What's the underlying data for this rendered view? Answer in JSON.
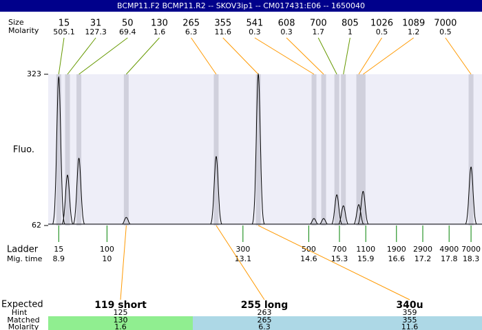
{
  "chart_data": {
    "type": "electropherogram",
    "title": "BCMP11.F2  BCMP11.R2 -- SKOV3ip1 -- CM017431:E06 -- 1650040",
    "size_label": "Size",
    "molarity_label": "Molarity",
    "y_label": "Fluo.",
    "ylim": [
      62,
      323
    ],
    "yticks": [
      62,
      323
    ],
    "xlim": [
      8.66,
      18.55
    ],
    "plot_color": "#eeeef8",
    "band_color": "#d0d0dc",
    "trace_color": "#000000",
    "peaks": {
      "size": [
        15,
        31,
        50,
        130,
        265,
        355,
        541,
        608,
        700,
        805,
        1026,
        1089,
        7000
      ],
      "molarity": [
        505.1,
        127.3,
        69.4,
        1.6,
        6.3,
        11.6,
        0.3,
        0.3,
        1.7,
        1,
        0.5,
        1.2,
        0.5
      ],
      "time": [
        8.9,
        9.1,
        9.36,
        10.44,
        12.49,
        13.45,
        14.72,
        14.94,
        15.24,
        15.39,
        15.74,
        15.84,
        18.3
      ],
      "fluo": [
        318,
        149,
        178,
        76,
        181,
        323,
        74,
        74,
        115,
        96,
        98,
        121,
        163
      ],
      "leader_color": [
        "#669900",
        "#669900",
        "#669900",
        "#669900",
        "#ff9900",
        "#ff9900",
        "#ff9900",
        "#ff9900",
        "#669900",
        "#669900",
        "#ff9900",
        "#ff9900",
        "#ff9900"
      ]
    },
    "ladder": {
      "label": "Ladder",
      "time_label": "Mig. time",
      "size": [
        15,
        100,
        300,
        500,
        700,
        1100,
        1900,
        2900,
        4900,
        7000
      ],
      "time": [
        8.9,
        10,
        13.1,
        14.6,
        15.3,
        15.9,
        16.6,
        17.2,
        17.8,
        18.3
      ],
      "color": "#008000"
    },
    "expected": {
      "label": "Expected",
      "hint_label": "Hint",
      "matched_label": "Matched",
      "molarity_label": "Molarity",
      "names": [
        "119 short",
        "255 long",
        "340u"
      ],
      "hint": [
        125,
        263,
        359
      ],
      "matched": [
        130,
        265,
        355
      ],
      "molarity": [
        1.6,
        6.3,
        11.6
      ],
      "link_color": "#ff9900"
    }
  }
}
